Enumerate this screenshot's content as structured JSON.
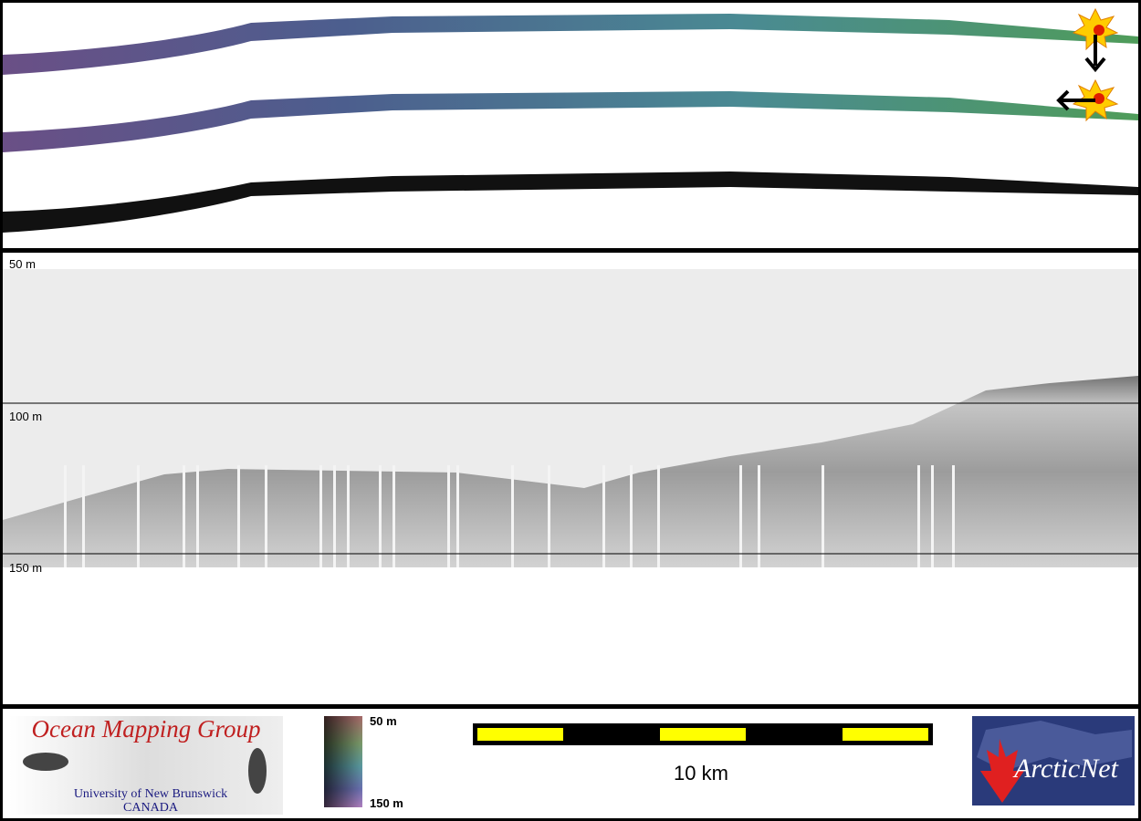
{
  "profile": {
    "depth_labels": [
      "50 m",
      "100 m",
      "150 m"
    ]
  },
  "footer": {
    "logo": {
      "title": "Ocean Mapping Group",
      "subtitle": "University of New Brunswick",
      "country": "CANADA"
    },
    "colorbar": {
      "top_label": "50 m",
      "bottom_label": "150 m"
    },
    "scale_bar": {
      "label": "10 km"
    },
    "partner_logo": {
      "text": "ArcticNet"
    }
  }
}
